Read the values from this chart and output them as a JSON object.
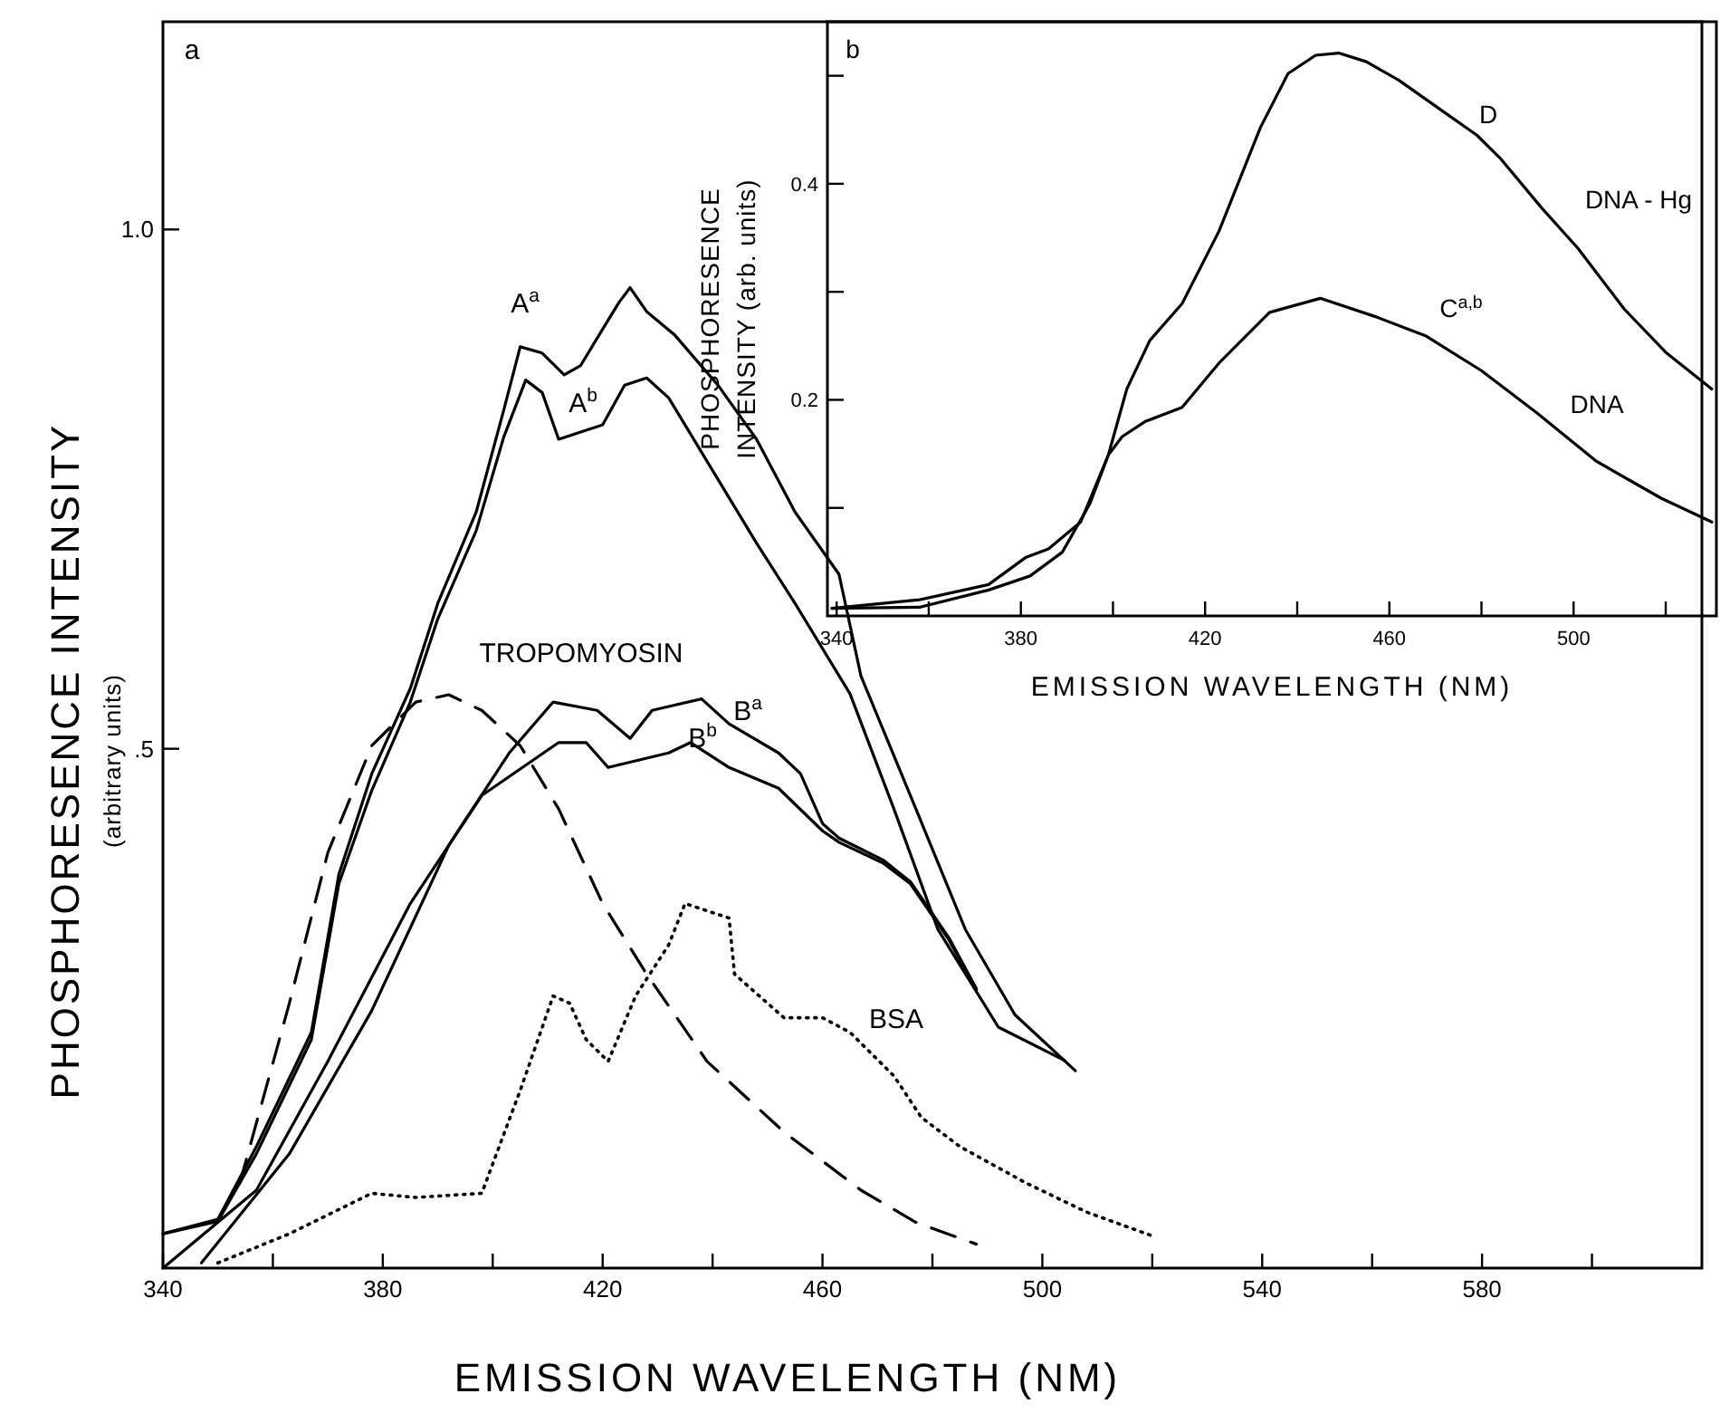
{
  "chart_data": [
    {
      "type": "line",
      "xlabel": "EMISSION WAVELENGTH (NM)",
      "ylabel": "PHOSPHORESENCE INTENSITY\n(arbitrary units)",
      "xlim": [
        340,
        620
      ],
      "ylim": [
        0,
        1.2
      ],
      "xticks": [
        340,
        {
          "value": 360,
          "label": null
        },
        380,
        {
          "value": 400,
          "label": null
        },
        420,
        {
          "value": 440,
          "label": null
        },
        460,
        {
          "value": 480,
          "label": null
        },
        500,
        {
          "value": 520,
          "label": null
        },
        540,
        {
          "value": 560,
          "label": null
        },
        580,
        {
          "value": 600,
          "label": null
        }
      ],
      "yticks": [
        {
          "value": 0.5,
          "label": ".5"
        },
        {
          "value": 1,
          "label": "1.0"
        }
      ],
      "series": [
        {
          "color": "#000000",
          "line_style": "solid",
          "x": [
            340,
            350,
            357,
            367,
            372,
            378,
            385,
            390,
            397,
            402,
            405,
            409,
            413,
            416,
            420,
            423,
            425,
            428,
            433,
            441,
            448,
            455,
            463,
            467,
            477,
            486,
            495,
            506
          ],
          "values": [
            0.033,
            0.047,
            0.117,
            0.227,
            0.379,
            0.476,
            0.558,
            0.64,
            0.728,
            0.826,
            0.887,
            0.881,
            0.86,
            0.869,
            0.904,
            0.93,
            0.944,
            0.921,
            0.899,
            0.85,
            0.798,
            0.728,
            0.668,
            0.57,
            0.442,
            0.326,
            0.244,
            0.19
          ]
        },
        {
          "color": "#000000",
          "line_style": "solid",
          "x": [
            340,
            350,
            357,
            367,
            372,
            378,
            385,
            390,
            397,
            402,
            406,
            409,
            412,
            416,
            420,
            424,
            428,
            432,
            440,
            448,
            455,
            465,
            473,
            481,
            492,
            504
          ],
          "values": [
            0.033,
            0.045,
            0.11,
            0.22,
            0.37,
            0.46,
            0.545,
            0.625,
            0.71,
            0.8,
            0.855,
            0.843,
            0.798,
            0.805,
            0.812,
            0.85,
            0.857,
            0.838,
            0.768,
            0.698,
            0.64,
            0.553,
            0.442,
            0.326,
            0.232,
            0.2
          ]
        },
        {
          "color": "#000000",
          "line_style": "dashed",
          "x": [
            350,
            354,
            363,
            370,
            378,
            386,
            392,
            398,
            405,
            412,
            420,
            428,
            439,
            453,
            467,
            477,
            488
          ],
          "values": [
            0.047,
            0.082,
            0.255,
            0.4,
            0.503,
            0.545,
            0.552,
            0.537,
            0.503,
            0.442,
            0.351,
            0.283,
            0.199,
            0.131,
            0.075,
            0.044,
            0.023
          ]
        },
        {
          "color": "#000000",
          "line_style": "solid",
          "x": [
            347,
            363,
            378,
            392,
            403,
            411,
            419,
            425,
            429,
            438,
            443,
            452,
            456,
            460,
            463,
            471,
            476,
            483,
            488
          ],
          "values": [
            0.005,
            0.11,
            0.248,
            0.407,
            0.496,
            0.545,
            0.537,
            0.51,
            0.537,
            0.548,
            0.524,
            0.496,
            0.476,
            0.428,
            0.414,
            0.393,
            0.372,
            0.318,
            0.269
          ]
        },
        {
          "color": "#000000",
          "line_style": "solid",
          "x": [
            340,
            357,
            370,
            385,
            398,
            412,
            417,
            421,
            432,
            436,
            443,
            452,
            460,
            463,
            471,
            476,
            483,
            488
          ],
          "values": [
            0,
            0.075,
            0.199,
            0.351,
            0.455,
            0.506,
            0.506,
            0.482,
            0.496,
            0.506,
            0.482,
            0.462,
            0.421,
            0.41,
            0.39,
            0.37,
            0.316,
            0.268
          ]
        },
        {
          "color": "#000000",
          "line_style": "dotted",
          "x": [
            350,
            363,
            378,
            386,
            398,
            405,
            411,
            414,
            417,
            421,
            426,
            432,
            435,
            439,
            443,
            444,
            453,
            460,
            465,
            473,
            478,
            485,
            497,
            508,
            520
          ],
          "values": [
            0.005,
            0.033,
            0.072,
            0.068,
            0.072,
            0.171,
            0.262,
            0.255,
            0.22,
            0.199,
            0.262,
            0.311,
            0.351,
            0.344,
            0.337,
            0.283,
            0.241,
            0.241,
            0.227,
            0.185,
            0.145,
            0.117,
            0.082,
            0.054,
            0.031
          ]
        }
      ],
      "annotations": [
        "a",
        "A$^{a}$",
        "A$^{b}$",
        "TROPOMYOSIN",
        "B$^{a}$",
        "B$^{b}$",
        "BSA"
      ]
    },
    {
      "type": "line",
      "xlabel": "EMISSION WAVELENGTH (NM)",
      "ylabel": "PHOSPHORESENCE\nINTENSITY (arb. units)",
      "xlim": [
        338,
        531
      ],
      "ylim": [
        0,
        0.55
      ],
      "xticks": [
        340,
        {
          "value": 360,
          "label": null
        },
        380,
        {
          "value": 400,
          "label": null
        },
        420,
        {
          "value": 440,
          "label": null
        },
        460,
        {
          "value": 480,
          "label": null
        },
        500,
        {
          "value": 520,
          "label": null
        }
      ],
      "yticks": [
        {
          "value": 0.1,
          "label": null
        },
        {
          "value": 0.2,
          "label": "0.2"
        },
        {
          "value": 0.3,
          "label": null
        },
        {
          "value": 0.4,
          "label": "0.4"
        },
        {
          "value": 0.5,
          "label": null
        }
      ],
      "series": [
        {
          "color": "#000000",
          "line_style": "solid",
          "x": [
            339,
            358,
            373,
            381,
            386,
            393,
            399,
            403,
            408,
            415,
            423,
            432,
            438,
            444,
            449,
            455,
            462,
            471,
            479,
            484,
            493,
            501,
            511,
            520,
            530
          ],
          "values": [
            0.007,
            0.015,
            0.029,
            0.054,
            0.062,
            0.087,
            0.149,
            0.21,
            0.255,
            0.289,
            0.356,
            0.452,
            0.502,
            0.519,
            0.521,
            0.513,
            0.496,
            0.469,
            0.445,
            0.424,
            0.378,
            0.34,
            0.284,
            0.244,
            0.21
          ]
        },
        {
          "color": "#000000",
          "line_style": "solid",
          "x": [
            339,
            358,
            373,
            382,
            389,
            395,
            399,
            402,
            407,
            415,
            423,
            434,
            445,
            457,
            468,
            480,
            492,
            505,
            519,
            530
          ],
          "values": [
            0.007,
            0.008,
            0.024,
            0.037,
            0.059,
            0.104,
            0.149,
            0.166,
            0.18,
            0.193,
            0.234,
            0.281,
            0.294,
            0.277,
            0.259,
            0.227,
            0.188,
            0.143,
            0.109,
            0.087
          ]
        }
      ],
      "annotations": [
        "b",
        "D",
        "DNA - Hg",
        "C$^{a,b}$",
        "DNA"
      ]
    }
  ]
}
